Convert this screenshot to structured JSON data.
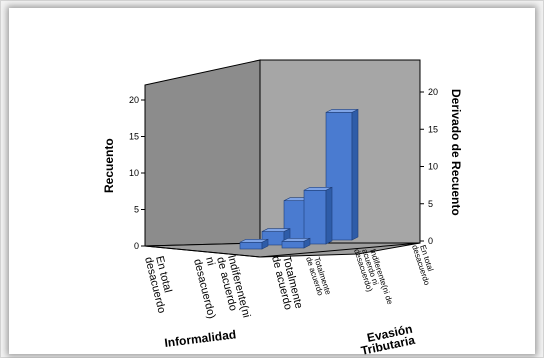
{
  "chart_data": {
    "type": "bar",
    "title": "",
    "left_axis_label": "Recuento",
    "right_axis_label": "Derivado de Recuento",
    "x_axis_label": "Informalidad",
    "z_axis_label": "Evasión Tributaria",
    "yticks": [
      "0",
      "5",
      "10",
      "15",
      "20"
    ],
    "ylim": [
      0,
      20
    ],
    "x_categories": [
      "En total desacuerdo",
      "Indiferente(ni de acuerdo ni desacuerdo)",
      "Totalmente de acuerdo"
    ],
    "z_categories": [
      "En total desacuerdo",
      "Indiferente(ni de acuerdo ni desacuerdo)",
      "Totalmente de acuerdo"
    ],
    "bars": [
      {
        "informalidad": "Indiferente(ni de acuerdo ni desacuerdo)",
        "evasion": "Totalmente de acuerdo",
        "value": 1
      },
      {
        "informalidad": "Indiferente(ni de acuerdo ni desacuerdo)",
        "evasion": "Indiferente(ni de acuerdo ni desacuerdo)",
        "value": 2
      },
      {
        "informalidad": "Indiferente(ni de acuerdo ni desacuerdo)",
        "evasion": "En total desacuerdo",
        "value": 6
      },
      {
        "informalidad": "Totalmente de acuerdo",
        "evasion": "En total desacuerdo",
        "value": 19
      },
      {
        "informalidad": "Totalmente de acuerdo",
        "evasion": "Indiferente(ni de acuerdo ni desacuerdo)",
        "value": 8
      },
      {
        "informalidad": "Totalmente de acuerdo",
        "evasion": "Totalmente de acuerdo",
        "value": 1
      }
    ],
    "colors": {
      "bar": "#4a7bd0",
      "bar_side": "#2e5ca8",
      "bar_top": "#7fa4e6",
      "wall": "#a6a6a6",
      "wall_dark": "#8c8c8c"
    }
  }
}
